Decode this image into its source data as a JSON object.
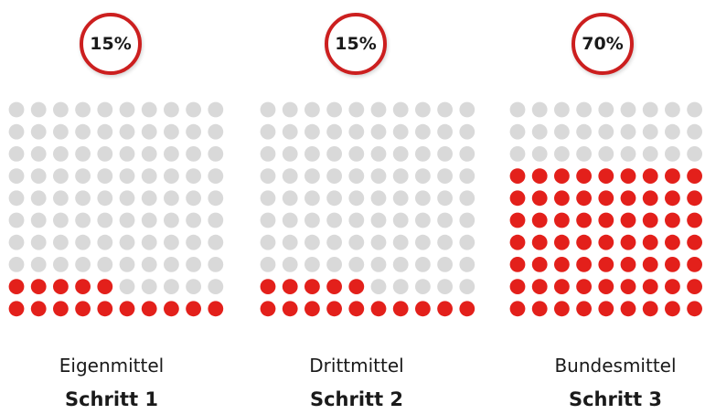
{
  "colors": {
    "filled": "#e3201b",
    "empty": "#d9d9d9",
    "ring": "#cc1f1f"
  },
  "chart_data": [
    {
      "type": "waffle",
      "percent_label": "15%",
      "value": 15,
      "total": 100,
      "label": "Eigenmittel",
      "step": "Schritt 1"
    },
    {
      "type": "waffle",
      "percent_label": "15%",
      "value": 15,
      "total": 100,
      "label": "Drittmittel",
      "step": "Schritt 2"
    },
    {
      "type": "waffle",
      "percent_label": "70%",
      "value": 70,
      "total": 100,
      "label": "Bundesmittel",
      "step": "Schritt 3"
    }
  ]
}
